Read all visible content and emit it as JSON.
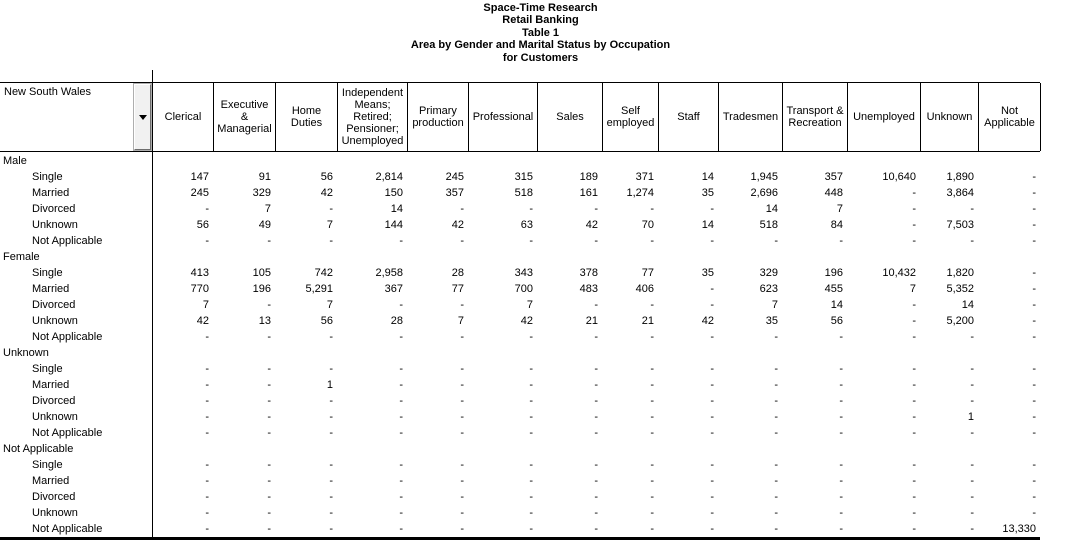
{
  "titles": [
    "Space-Time Research",
    "Retail Banking",
    "Table 1",
    "Area by Gender and Marital Status by Occupation",
    "for Customers"
  ],
  "table": {
    "area": {
      "label": "New South Wales",
      "dropdown_icon": "chevron-down"
    },
    "empty_cell": "-",
    "columns": [
      "Clerical",
      "Executive & Managerial",
      "Home Duties",
      "Independent Means; Retired; Pensioner; Unemployed",
      "Primary production",
      "Professional",
      "Sales",
      "Self employed",
      "Staff",
      "Tradesmen",
      "Transport & Recreation",
      "Unemployed",
      "Unknown",
      "Not Applicable"
    ],
    "sections": [
      {
        "label": "Male",
        "rows": [
          {
            "label": "Single",
            "values": [
              "147",
              "91",
              "56",
              "2,814",
              "245",
              "315",
              "189",
              "371",
              "14",
              "1,945",
              "357",
              "10,640",
              "1,890",
              "-"
            ]
          },
          {
            "label": "Married",
            "values": [
              "245",
              "329",
              "42",
              "150",
              "357",
              "518",
              "161",
              "1,274",
              "35",
              "2,696",
              "448",
              "-",
              "3,864",
              "-"
            ]
          },
          {
            "label": "Divorced",
            "values": [
              "-",
              "7",
              "-",
              "14",
              "-",
              "-",
              "-",
              "-",
              "-",
              "14",
              "7",
              "-",
              "-",
              "-"
            ]
          },
          {
            "label": "Unknown",
            "values": [
              "56",
              "49",
              "7",
              "144",
              "42",
              "63",
              "42",
              "70",
              "14",
              "518",
              "84",
              "-",
              "7,503",
              "-"
            ]
          },
          {
            "label": "Not Applicable",
            "values": [
              "-",
              "-",
              "-",
              "-",
              "-",
              "-",
              "-",
              "-",
              "-",
              "-",
              "-",
              "-",
              "-",
              "-"
            ]
          }
        ]
      },
      {
        "label": "Female",
        "rows": [
          {
            "label": "Single",
            "values": [
              "413",
              "105",
              "742",
              "2,958",
              "28",
              "343",
              "378",
              "77",
              "35",
              "329",
              "196",
              "10,432",
              "1,820",
              "-"
            ]
          },
          {
            "label": "Married",
            "values": [
              "770",
              "196",
              "5,291",
              "367",
              "77",
              "700",
              "483",
              "406",
              "-",
              "623",
              "455",
              "7",
              "5,352",
              "-"
            ]
          },
          {
            "label": "Divorced",
            "values": [
              "7",
              "-",
              "7",
              "-",
              "-",
              "7",
              "-",
              "-",
              "-",
              "7",
              "14",
              "-",
              "14",
              "-"
            ]
          },
          {
            "label": "Unknown",
            "values": [
              "42",
              "13",
              "56",
              "28",
              "7",
              "42",
              "21",
              "21",
              "42",
              "35",
              "56",
              "-",
              "5,200",
              "-"
            ]
          },
          {
            "label": "Not Applicable",
            "values": [
              "-",
              "-",
              "-",
              "-",
              "-",
              "-",
              "-",
              "-",
              "-",
              "-",
              "-",
              "-",
              "-",
              "-"
            ]
          }
        ]
      },
      {
        "label": "Unknown",
        "rows": [
          {
            "label": "Single",
            "values": [
              "-",
              "-",
              "-",
              "-",
              "-",
              "-",
              "-",
              "-",
              "-",
              "-",
              "-",
              "-",
              "-",
              "-"
            ]
          },
          {
            "label": "Married",
            "values": [
              "-",
              "-",
              "1",
              "-",
              "-",
              "-",
              "-",
              "-",
              "-",
              "-",
              "-",
              "-",
              "-",
              "-"
            ]
          },
          {
            "label": "Divorced",
            "values": [
              "-",
              "-",
              "-",
              "-",
              "-",
              "-",
              "-",
              "-",
              "-",
              "-",
              "-",
              "-",
              "-",
              "-"
            ]
          },
          {
            "label": "Unknown",
            "values": [
              "-",
              "-",
              "-",
              "-",
              "-",
              "-",
              "-",
              "-",
              "-",
              "-",
              "-",
              "-",
              "1",
              "-"
            ]
          },
          {
            "label": "Not Applicable",
            "values": [
              "-",
              "-",
              "-",
              "-",
              "-",
              "-",
              "-",
              "-",
              "-",
              "-",
              "-",
              "-",
              "-",
              "-"
            ]
          }
        ]
      },
      {
        "label": "Not Applicable",
        "rows": [
          {
            "label": "Single",
            "values": [
              "-",
              "-",
              "-",
              "-",
              "-",
              "-",
              "-",
              "-",
              "-",
              "-",
              "-",
              "-",
              "-",
              "-"
            ]
          },
          {
            "label": "Married",
            "values": [
              "-",
              "-",
              "-",
              "-",
              "-",
              "-",
              "-",
              "-",
              "-",
              "-",
              "-",
              "-",
              "-",
              "-"
            ]
          },
          {
            "label": "Divorced",
            "values": [
              "-",
              "-",
              "-",
              "-",
              "-",
              "-",
              "-",
              "-",
              "-",
              "-",
              "-",
              "-",
              "-",
              "-"
            ]
          },
          {
            "label": "Unknown",
            "values": [
              "-",
              "-",
              "-",
              "-",
              "-",
              "-",
              "-",
              "-",
              "-",
              "-",
              "-",
              "-",
              "-",
              "-"
            ]
          },
          {
            "label": "Not Applicable",
            "values": [
              "-",
              "-",
              "-",
              "-",
              "-",
              "-",
              "-",
              "-",
              "-",
              "-",
              "-",
              "-",
              "-",
              "13,330"
            ]
          }
        ]
      }
    ]
  }
}
